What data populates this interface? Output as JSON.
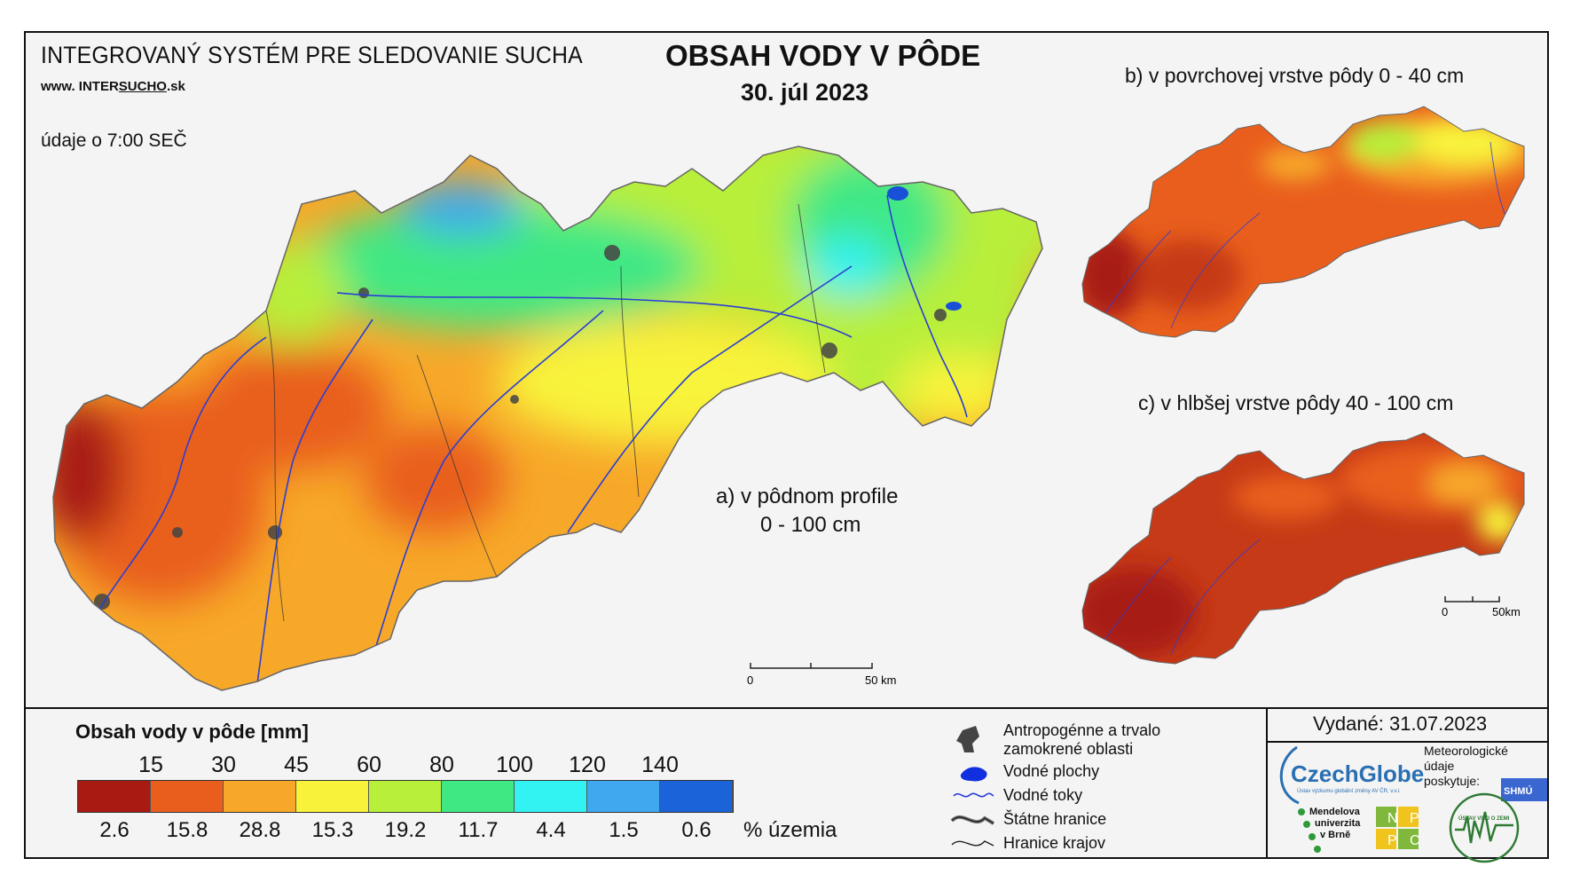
{
  "header": {
    "system_title": "INTEGROVANÝ SYSTÉM PRE SLEDOVANIE SUCHA",
    "website_prefix": "www. INTER",
    "website_brand": "SUCHO",
    "website_suffix": ".sk",
    "data_time": "údaje o 7:00 SEČ",
    "main_title": "OBSAH VODY V PÔDE",
    "date": "30. júl 2023"
  },
  "maps": {
    "a_caption_line1": "a) v pôdnom profile",
    "a_caption_line2": "0 - 100 cm",
    "b_caption": "b) v povrchovej vrstve pôdy 0 - 40 cm",
    "c_caption": "c) v hlbšej vrstve pôdy 40 - 100 cm",
    "scale_main_start": "0",
    "scale_main_end": "50 km",
    "scale_small_start": "0",
    "scale_small_end": "50km"
  },
  "legend": {
    "title": "Obsah vody v pôde  [mm]",
    "thresholds": [
      "15",
      "30",
      "45",
      "60",
      "80",
      "100",
      "120",
      "140"
    ],
    "colors": [
      "#a81a12",
      "#e95e1d",
      "#f7a829",
      "#f8f33a",
      "#b7ef3a",
      "#40e884",
      "#33f2f2",
      "#3fa8ee",
      "#1a63d8"
    ],
    "percent_of_area": [
      "2.6",
      "15.8",
      "28.8",
      "15.3",
      "19.2",
      "11.7",
      "4.4",
      "1.5",
      "0.6"
    ],
    "percent_unit": "% územia"
  },
  "map_key": {
    "urban_line1": "Antropogénne a trvalo",
    "urban_line2": "zamokrené oblasti",
    "water_bodies": "Vodné plochy",
    "rivers": "Vodné toky",
    "state_border": "Štátne hranice",
    "region_border": "Hranice krajov"
  },
  "footer": {
    "issued": "Vydané: 31.07.2023",
    "czechglobe": "CzechGlobe",
    "czechglobe_sub": "Ústav výzkumu globální změny AV ČR, v.v.i.",
    "meteo_line1": "Meteorologické",
    "meteo_line2": "údaje",
    "meteo_line3": "poskytuje:",
    "shmu": "SHMÚ",
    "mendel_line1": "Mendelova",
    "mendel_line2": "univerzita",
    "mendel_line3": "v Brně",
    "nppc": [
      "N",
      "P",
      "P",
      "C"
    ],
    "uvz": "ÚSTAV VIED O ZEMI"
  }
}
